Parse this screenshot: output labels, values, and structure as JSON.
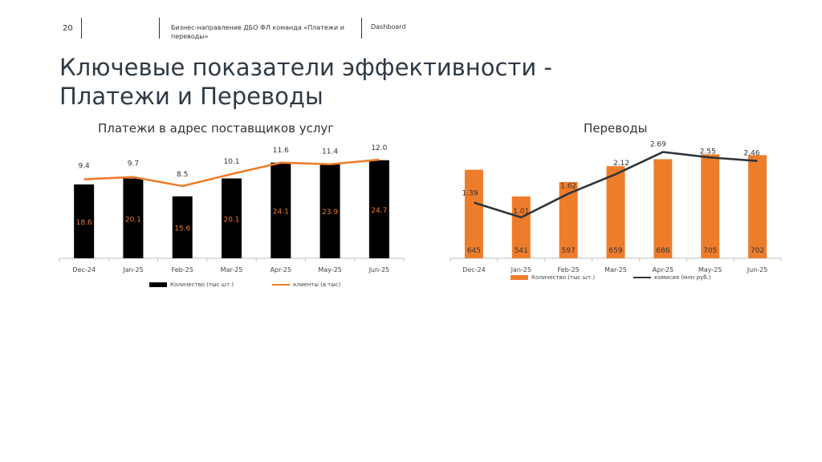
{
  "header": {
    "page_number": "20",
    "division": "Бизнес-направление ДБО ФЛ команда «Платежи и переводы»",
    "section": "Dashboard"
  },
  "page_title": "Ключевые показатели эффективности - Платежи и Переводы",
  "colors": {
    "black_bar": "#000000",
    "orange": "#ee7d2b",
    "dark_line": "#2f353a",
    "axis": "#bfbfbf"
  },
  "chart_data": [
    {
      "type": "bar",
      "title": "Платежи в адрес поставщиков услуг",
      "categories": [
        "Dec-24",
        "Jan-25",
        "Feb-25",
        "Mar-25",
        "Apr-25",
        "May-25",
        "Jun-25"
      ],
      "series": [
        {
          "name": "Количество (тыс шт.)",
          "type": "bar",
          "color": "#000000",
          "values": [
            18.6,
            20.1,
            15.6,
            20.1,
            24.1,
            23.9,
            24.7
          ],
          "labels": [
            "18.6",
            "20.1",
            "15.6",
            "20.1",
            "24.1",
            "23.9",
            "24.7"
          ]
        },
        {
          "name": "клиенты (в тыс)",
          "type": "line",
          "color": "#ee7d2b",
          "values": [
            9.4,
            9.7,
            8.5,
            10.1,
            11.6,
            11.4,
            12.0
          ],
          "labels": [
            "9.4",
            "9.7",
            "8.5",
            "10.1",
            "11.6",
            "11.4",
            "12.0"
          ]
        }
      ],
      "legend_position": "bottom",
      "grid": false
    },
    {
      "type": "bar",
      "title": "Переводы",
      "categories": [
        "Dec-24",
        "Jan-25",
        "Feb-25",
        "Mar-25",
        "Apr-25",
        "May-25",
        "Jun-25"
      ],
      "series": [
        {
          "name": "Количество (тыс шт.)",
          "type": "bar",
          "color": "#ee7d2b",
          "values": [
            645,
            541,
            597,
            659,
            686,
            705,
            702
          ],
          "labels": [
            "645",
            "541",
            "597",
            "659",
            "686",
            "705",
            "702"
          ]
        },
        {
          "name": "комисия (млн руб.)",
          "type": "line",
          "color": "#2f353a",
          "values": [
            1.39,
            1.01,
            1.62,
            2.12,
            2.69,
            2.55,
            2.46
          ],
          "labels": [
            "1.39",
            "1.01",
            "1.62",
            "2.12",
            "2.69",
            "2.55",
            "2.46"
          ]
        }
      ],
      "legend_position": "bottom",
      "grid": false
    }
  ]
}
